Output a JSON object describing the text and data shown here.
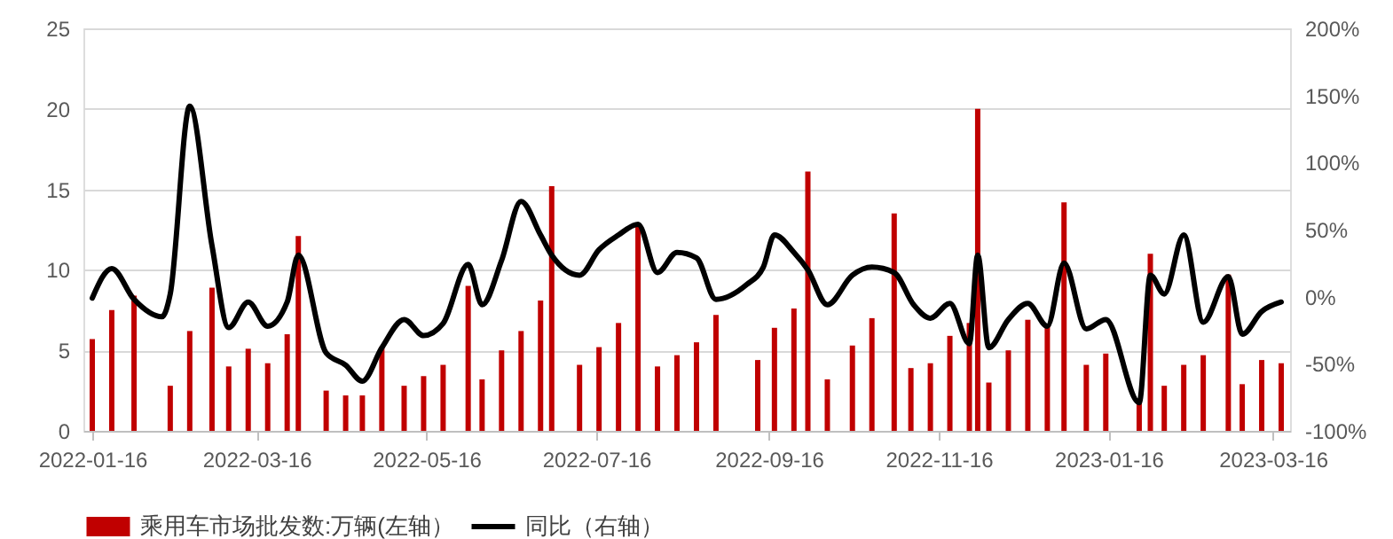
{
  "chart_data": {
    "type": "bar",
    "x": [
      "2022-01-16",
      "2022-01-23",
      "2022-01-31",
      "2022-02-13",
      "2022-02-20",
      "2022-02-28",
      "2022-03-06",
      "2022-03-13",
      "2022-03-20",
      "2022-03-27",
      "2022-03-31",
      "2022-04-10",
      "2022-04-17",
      "2022-04-23",
      "2022-04-30",
      "2022-05-08",
      "2022-05-15",
      "2022-05-22",
      "2022-05-31",
      "2022-06-05",
      "2022-06-12",
      "2022-06-19",
      "2022-06-26",
      "2022-06-30",
      "2022-07-10",
      "2022-07-17",
      "2022-07-24",
      "2022-07-31",
      "2022-08-07",
      "2022-08-14",
      "2022-08-21",
      "2022-08-28",
      "2022-09-12",
      "2022-09-18",
      "2022-09-25",
      "2022-09-30",
      "2022-10-07",
      "2022-10-16",
      "2022-10-23",
      "2022-10-31",
      "2022-11-06",
      "2022-11-13",
      "2022-11-20",
      "2022-11-27",
      "2022-11-30",
      "2022-12-04",
      "2022-12-11",
      "2022-12-18",
      "2022-12-25",
      "2022-12-31",
      "2023-01-08",
      "2023-01-15",
      "2023-01-27",
      "2023-01-31",
      "2023-02-05",
      "2023-02-12",
      "2023-02-19",
      "2023-02-28",
      "2023-03-05",
      "2023-03-12",
      "2023-03-19"
    ],
    "series": [
      {
        "name": "乘用车市场批发数:万辆(左轴）",
        "color": "#c00000",
        "values": [
          5.7,
          7.5,
          8.4,
          2.8,
          6.2,
          8.9,
          4.0,
          5.1,
          4.2,
          6.0,
          12.1,
          2.5,
          2.2,
          2.2,
          5.2,
          2.8,
          3.4,
          4.1,
          9.0,
          3.2,
          5.0,
          6.2,
          8.1,
          15.2,
          4.1,
          5.2,
          6.7,
          12.8,
          4.0,
          4.7,
          5.5,
          7.2,
          4.4,
          6.4,
          7.6,
          16.1,
          3.2,
          5.3,
          7.0,
          13.5,
          3.9,
          4.2,
          5.9,
          6.7,
          20.0,
          3.0,
          5.0,
          6.9,
          6.5,
          14.2,
          4.1,
          4.8,
          1.8,
          11.0,
          2.8,
          4.1,
          4.7,
          9.7,
          2.9,
          4.4,
          4.2
        ]
      },
      {
        "name": "同比（右轴）",
        "type": "line",
        "axis": "y2",
        "color": "#000000",
        "x": [
          "2022-01-16",
          "2022-01-23",
          "2022-01-31",
          "2022-02-10",
          "2022-02-13",
          "2022-02-20",
          "2022-02-28",
          "2022-03-06",
          "2022-03-13",
          "2022-03-20",
          "2022-03-27",
          "2022-03-31",
          "2022-04-10",
          "2022-04-17",
          "2022-04-23",
          "2022-04-30",
          "2022-05-08",
          "2022-05-15",
          "2022-05-22",
          "2022-05-31",
          "2022-06-05",
          "2022-06-12",
          "2022-06-19",
          "2022-06-26",
          "2022-06-30",
          "2022-07-10",
          "2022-07-17",
          "2022-07-24",
          "2022-07-31",
          "2022-08-07",
          "2022-08-14",
          "2022-08-21",
          "2022-08-28",
          "2022-09-08",
          "2022-09-14",
          "2022-09-18",
          "2022-09-25",
          "2022-09-30",
          "2022-10-07",
          "2022-10-16",
          "2022-10-23",
          "2022-10-31",
          "2022-11-07",
          "2022-11-13",
          "2022-11-20",
          "2022-11-27",
          "2022-11-30",
          "2022-12-04",
          "2022-12-11",
          "2022-12-18",
          "2022-12-25",
          "2022-12-31",
          "2023-01-08",
          "2023-01-15",
          "2023-01-27",
          "2023-01-31",
          "2023-02-05",
          "2023-02-12",
          "2023-02-19",
          "2023-02-28",
          "2023-03-05",
          "2023-03-12",
          "2023-03-19"
        ],
        "values": [
          -1,
          21,
          -2,
          -15,
          2,
          142,
          38,
          -23,
          -4,
          -22,
          -4,
          31,
          -42,
          -51,
          -63,
          -38,
          -17,
          -29,
          -20,
          24,
          -6,
          27,
          71,
          46,
          31,
          16,
          35,
          46,
          54,
          18,
          33,
          29,
          -2,
          9,
          22,
          46,
          33,
          20,
          -6,
          16,
          22,
          18,
          -6,
          -16,
          -5,
          -35,
          31,
          -38,
          -17,
          -5,
          -22,
          25,
          -24,
          -17,
          -79,
          16,
          2,
          46,
          -19,
          15,
          -28,
          -11,
          -4
        ]
      }
    ],
    "xlim": [
      "2022-01-16",
      "2023-03-19"
    ],
    "xticks": [
      "2022-01-16",
      "2022-03-16",
      "2022-05-16",
      "2022-07-16",
      "2022-09-16",
      "2022-11-16",
      "2023-01-16",
      "2023-03-16"
    ],
    "ylim": [
      0,
      25
    ],
    "yticks": [
      0,
      5,
      10,
      15,
      20,
      25
    ],
    "y2lim": [
      -100,
      200
    ],
    "y2ticks": [
      {
        "value": -100,
        "label": "-100%"
      },
      {
        "value": -50,
        "label": "-50%"
      },
      {
        "value": 0,
        "label": "0%"
      },
      {
        "value": 50,
        "label": "50%"
      },
      {
        "value": 100,
        "label": "100%"
      },
      {
        "value": 150,
        "label": "150%"
      },
      {
        "value": 200,
        "label": "200%"
      }
    ],
    "grid": "y",
    "legend": "bottom",
    "line_style": "solid",
    "marker": "none"
  }
}
